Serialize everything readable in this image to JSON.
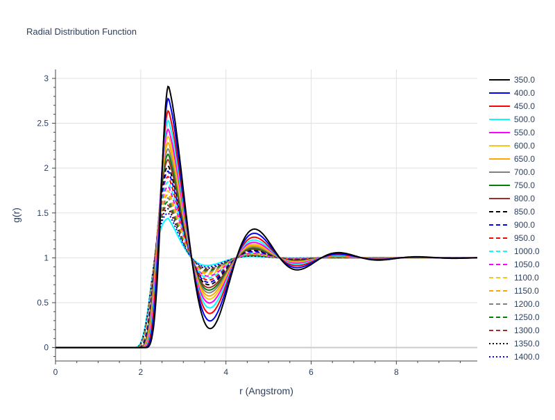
{
  "chart_data": {
    "type": "line",
    "title": "Radial Distribution Function",
    "xlabel": "r (Angstrom)",
    "ylabel": "g(r)",
    "xlim": [
      0,
      9.9
    ],
    "ylim": [
      -0.15,
      3.1
    ],
    "xticks": [
      0,
      2,
      4,
      6,
      8
    ],
    "xtick_labels": [
      "0",
      "2",
      "4",
      "6",
      "8"
    ],
    "yticks": [
      0,
      0.5,
      1,
      1.5,
      2,
      2.5,
      3
    ],
    "ytick_labels": [
      "0",
      "0.5",
      "1",
      "1.5",
      "2",
      "2.5",
      "3"
    ],
    "grid": true,
    "legend_position": "right",
    "series": [
      {
        "name": "350.0",
        "color": "#000000",
        "dash": "solid",
        "peak": 2.93
      },
      {
        "name": "400.0",
        "color": "#0000ff",
        "dash": "solid",
        "peak": 2.79
      },
      {
        "name": "450.0",
        "color": "#ff0000",
        "dash": "solid",
        "peak": 2.65
      },
      {
        "name": "500.0",
        "color": "#00ffff",
        "dash": "solid",
        "peak": 2.54
      },
      {
        "name": "550.0",
        "color": "#ff00ff",
        "dash": "solid",
        "peak": 2.44
      },
      {
        "name": "600.0",
        "color": "#f5c518",
        "dash": "solid",
        "peak": 2.36
      },
      {
        "name": "650.0",
        "color": "#ffa500",
        "dash": "solid",
        "peak": 2.29
      },
      {
        "name": "700.0",
        "color": "#808080",
        "dash": "solid",
        "peak": 2.22
      },
      {
        "name": "750.0",
        "color": "#008000",
        "dash": "solid",
        "peak": 2.16
      },
      {
        "name": "800.0",
        "color": "#a52a2a",
        "dash": "solid",
        "peak": 2.1
      },
      {
        "name": "850.0",
        "color": "#000000",
        "dash": "dash",
        "peak": 2.03
      },
      {
        "name": "900.0",
        "color": "#0000ff",
        "dash": "dash",
        "peak": 1.97
      },
      {
        "name": "950.0",
        "color": "#ff0000",
        "dash": "dash",
        "peak": 1.91
      },
      {
        "name": "1000.0",
        "color": "#00ffff",
        "dash": "dash",
        "peak": 1.85
      },
      {
        "name": "1050.0",
        "color": "#ff00ff",
        "dash": "dash",
        "peak": 1.8
      },
      {
        "name": "1100.0",
        "color": "#f5c518",
        "dash": "dash",
        "peak": 1.75
      },
      {
        "name": "1150.0",
        "color": "#ffa500",
        "dash": "dash",
        "peak": 1.71
      },
      {
        "name": "1200.0",
        "color": "#808080",
        "dash": "dash",
        "peak": 1.67
      },
      {
        "name": "1250.0",
        "color": "#008000",
        "dash": "dash",
        "peak": 1.63
      },
      {
        "name": "1300.0",
        "color": "#a52a2a",
        "dash": "dash",
        "peak": 1.59
      },
      {
        "name": "1350.0",
        "color": "#000000",
        "dash": "dot",
        "peak": 1.55
      },
      {
        "name": "1400.0",
        "color": "#0000ff",
        "dash": "dot",
        "peak": 1.5
      },
      {
        "name": "",
        "color": "#00ffff",
        "dash": "solid",
        "peak": 1.44
      }
    ]
  }
}
